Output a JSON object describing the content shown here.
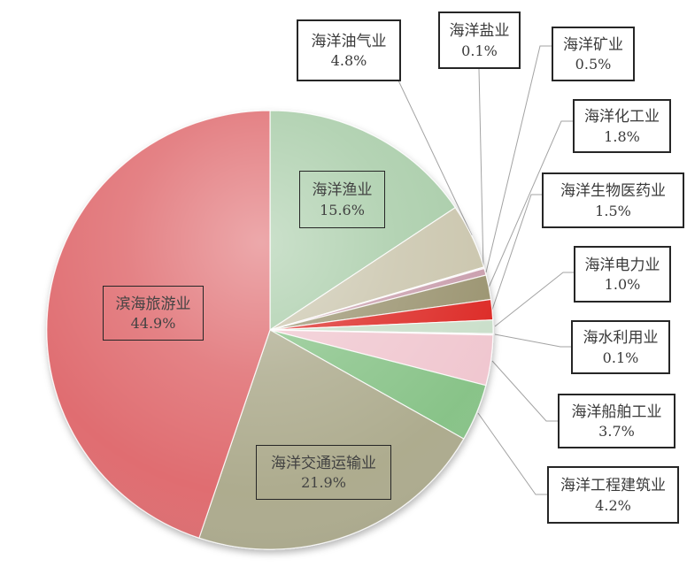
{
  "chart_data": {
    "type": "pie",
    "title": "",
    "start_angle_deg": 0,
    "direction": "clockwise",
    "value_suffix": "%",
    "legend": "none",
    "slices": [
      {
        "label": "海洋渔业",
        "value": 15.6,
        "display": "15.6%",
        "color": "#a6cba6",
        "callout": "inside"
      },
      {
        "label": "海洋油气业",
        "value": 4.8,
        "display": "4.8%",
        "color": "#c9c4ab",
        "callout": "outside"
      },
      {
        "label": "海洋盐业",
        "value": 0.1,
        "display": "0.1%",
        "color": "#e9dde1",
        "callout": "outside"
      },
      {
        "label": "海洋矿业",
        "value": 0.5,
        "display": "0.5%",
        "color": "#c89cab",
        "callout": "outside"
      },
      {
        "label": "海洋化工业",
        "value": 1.8,
        "display": "1.8%",
        "color": "#99926e",
        "callout": "outside"
      },
      {
        "label": "海洋生物医药业",
        "value": 1.5,
        "display": "1.5%",
        "color": "#dc2523",
        "callout": "outside"
      },
      {
        "label": "海洋电力业",
        "value": 1.0,
        "display": "1.0%",
        "color": "#c9dec9",
        "callout": "outside"
      },
      {
        "label": "海水利用业",
        "value": 0.1,
        "display": "0.1%",
        "color": "#f2ecec",
        "callout": "outside"
      },
      {
        "label": "海洋船舶工业",
        "value": 3.7,
        "display": "3.7%",
        "color": "#f0c6cf",
        "callout": "outside"
      },
      {
        "label": "海洋工程建筑业",
        "value": 4.2,
        "display": "4.2%",
        "color": "#86c286",
        "callout": "outside"
      },
      {
        "label": "海洋交通运输业",
        "value": 21.9,
        "display": "21.9%",
        "color": "#acaa8c",
        "callout": "inside"
      },
      {
        "label": "滨海旅游业",
        "value": 44.9,
        "display": "44.9%",
        "color": "#df6b6e",
        "callout": "inside"
      }
    ],
    "colors": {
      "leader_line": "#a3a3a3",
      "callout_border": "#262626",
      "text": "#3a3a3a"
    }
  }
}
